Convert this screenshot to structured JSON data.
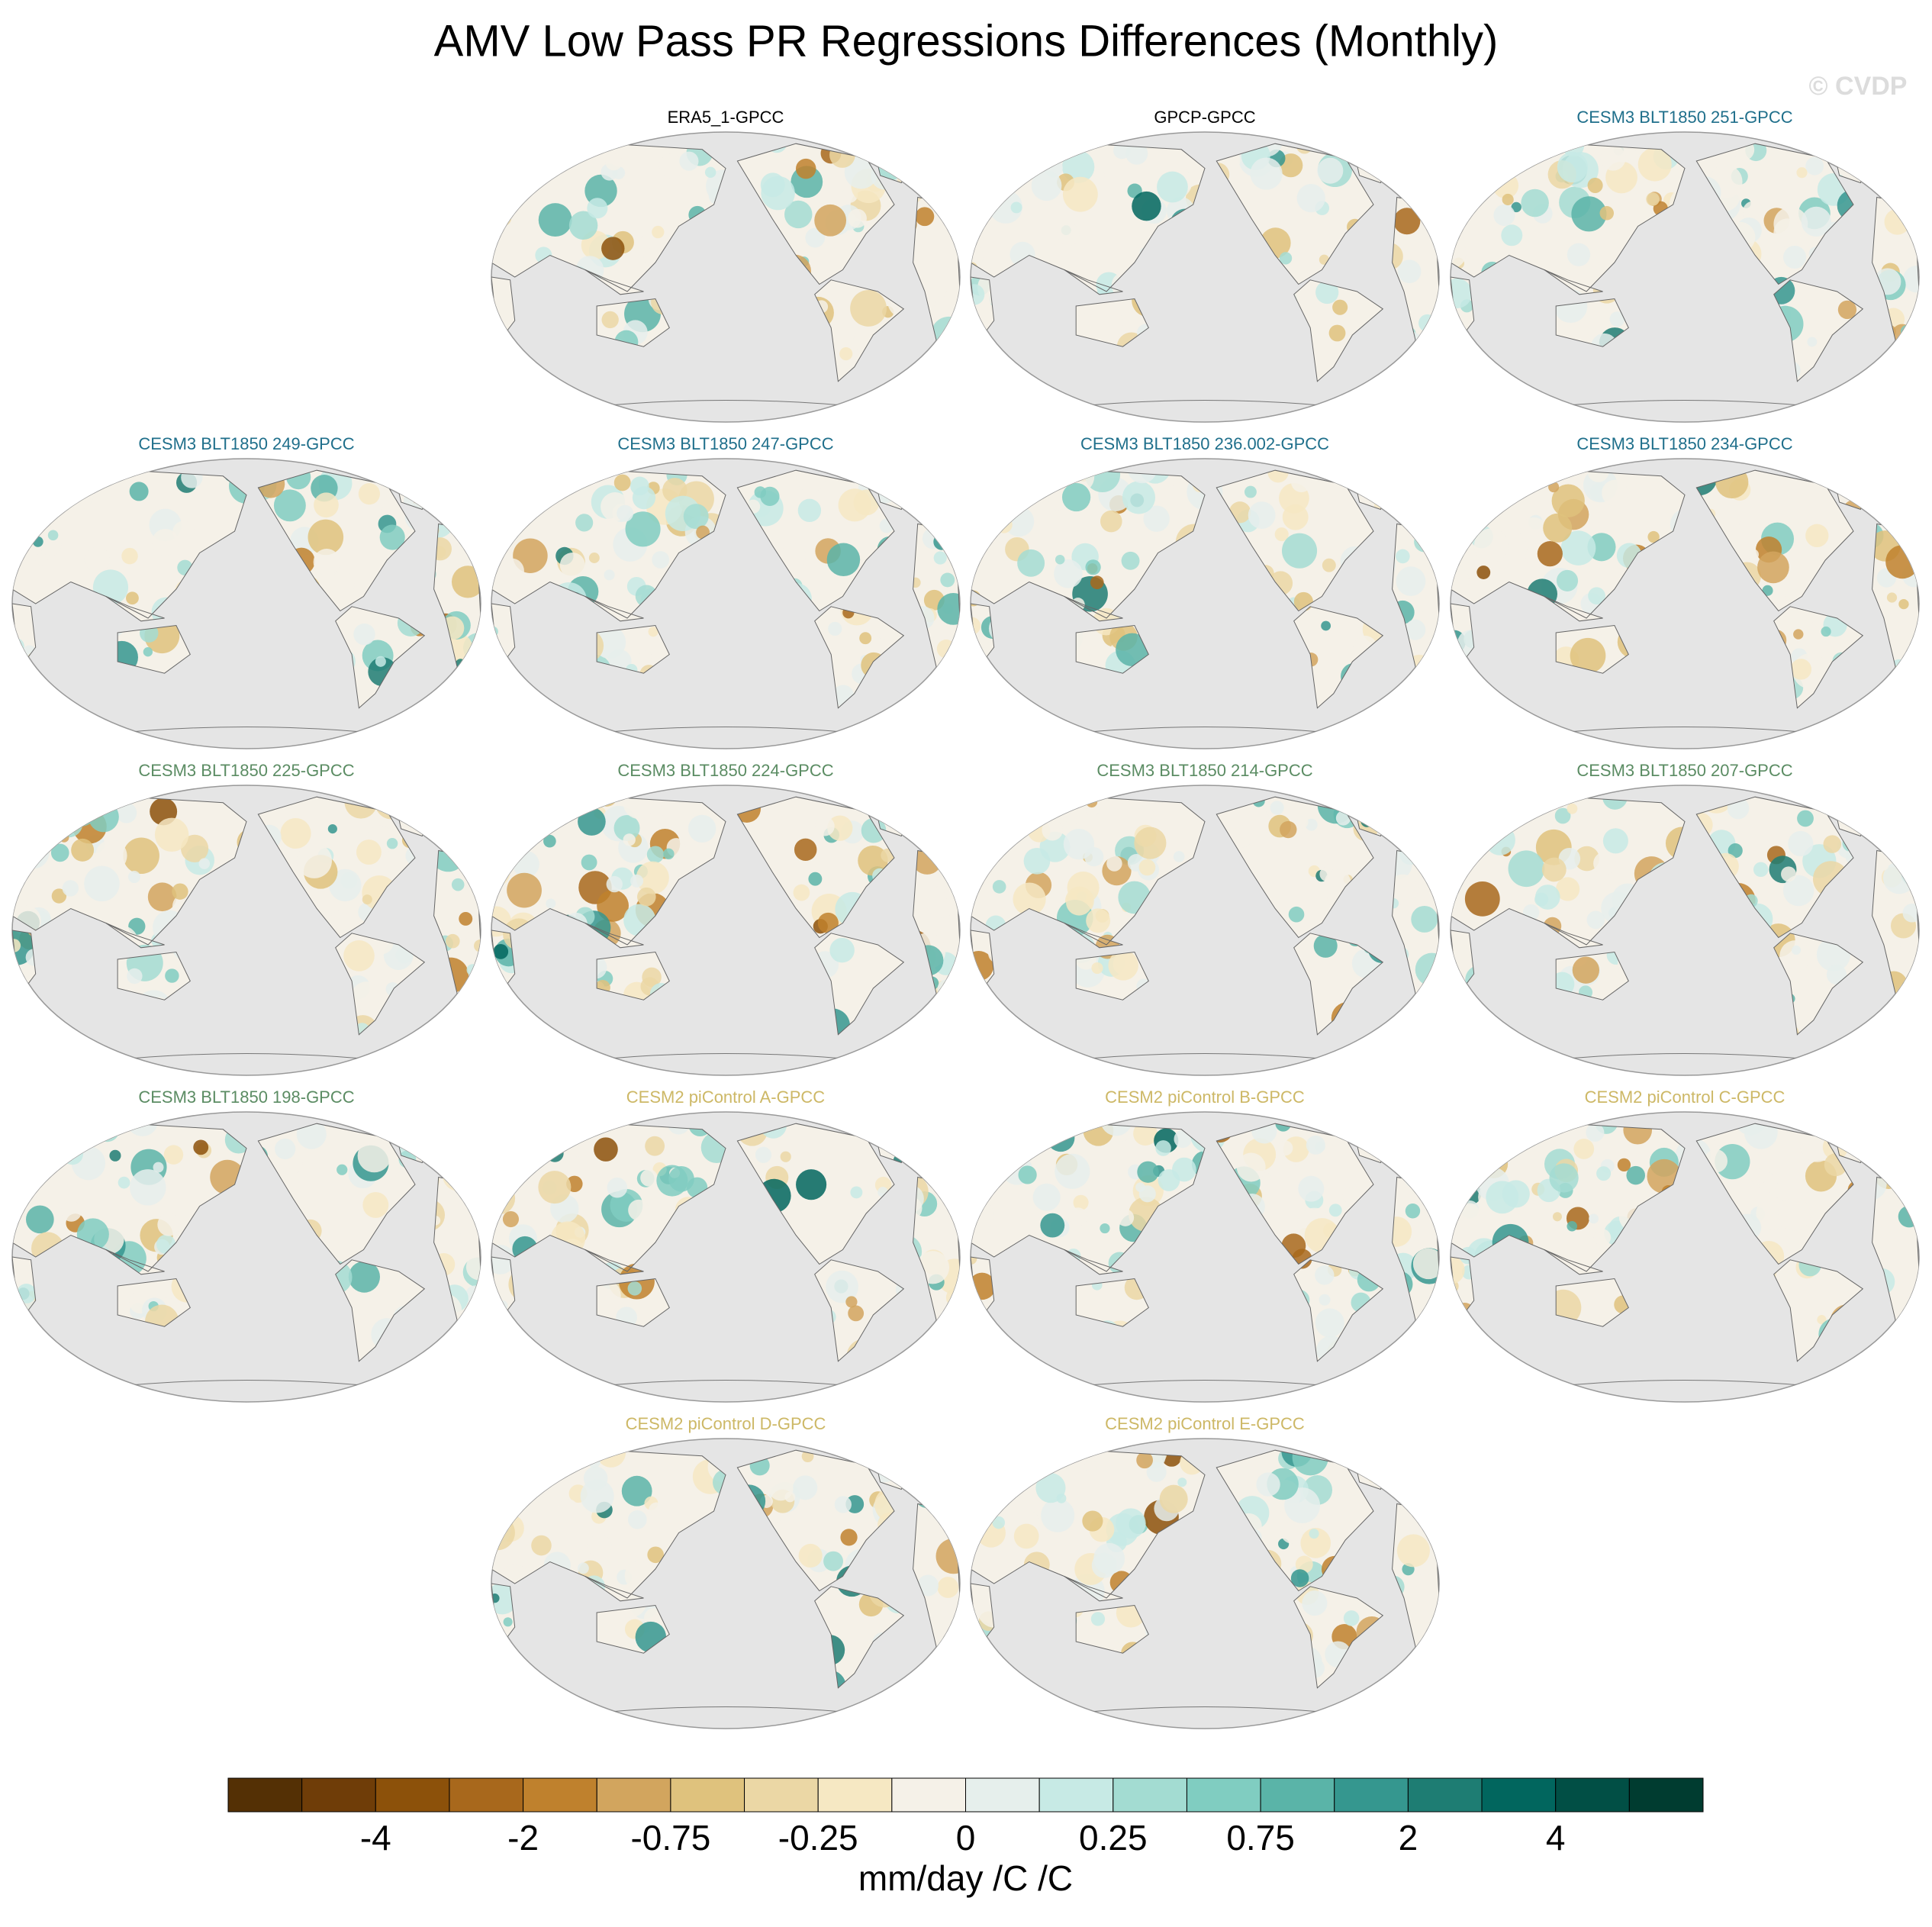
{
  "title": "AMV Low Pass PR Regressions Differences (Monthly)",
  "watermark": "© CVDP",
  "rows": [
    [
      {
        "title": "ERA5_1-GPCC",
        "color": "#000000"
      },
      {
        "title": "GPCP-GPCC",
        "color": "#000000"
      },
      {
        "title": "CESM3 BLT1850 251-GPCC",
        "color": "#1f6f8b"
      }
    ],
    [
      {
        "title": "CESM3 BLT1850 249-GPCC",
        "color": "#1f6f8b"
      },
      {
        "title": "CESM3 BLT1850 247-GPCC",
        "color": "#1f6f8b"
      },
      {
        "title": "CESM3 BLT1850 236.002-GPCC",
        "color": "#1f6f8b"
      },
      {
        "title": "CESM3 BLT1850 234-GPCC",
        "color": "#1f6f8b"
      }
    ],
    [
      {
        "title": "CESM3 BLT1850 225-GPCC",
        "color": "#5b8c63"
      },
      {
        "title": "CESM3 BLT1850 224-GPCC",
        "color": "#5b8c63"
      },
      {
        "title": "CESM3 BLT1850 214-GPCC",
        "color": "#5b8c63"
      },
      {
        "title": "CESM3 BLT1850 207-GPCC",
        "color": "#5b8c63"
      }
    ],
    [
      {
        "title": "CESM3 BLT1850 198-GPCC",
        "color": "#5b8c63"
      },
      {
        "title": "CESM2 piControl A-GPCC",
        "color": "#cdb866"
      },
      {
        "title": "CESM2 piControl B-GPCC",
        "color": "#cdb866"
      },
      {
        "title": "CESM2 piControl C-GPCC",
        "color": "#cdb866"
      }
    ],
    [
      {
        "title": "CESM2 piControl D-GPCC",
        "color": "#cdb866"
      },
      {
        "title": "CESM2 piControl E-GPCC",
        "color": "#cdb866"
      }
    ]
  ],
  "colorbar": {
    "colors": [
      "#543005",
      "#6f3d08",
      "#8c510a",
      "#a8681c",
      "#bf812d",
      "#d2a55e",
      "#dfc27d",
      "#ebd7a5",
      "#f6e8c3",
      "#f5f1e8",
      "#e6efec",
      "#c7eae5",
      "#a3dcd2",
      "#80cdc1",
      "#5ab4a8",
      "#35978f",
      "#1e7d73",
      "#01665e",
      "#014f45",
      "#003c30"
    ],
    "labels": [
      "-4",
      "-2",
      "-0.75",
      "-0.25",
      "0",
      "0.25",
      "0.75",
      "2",
      "4"
    ],
    "units": "mm/day /C /C"
  }
}
